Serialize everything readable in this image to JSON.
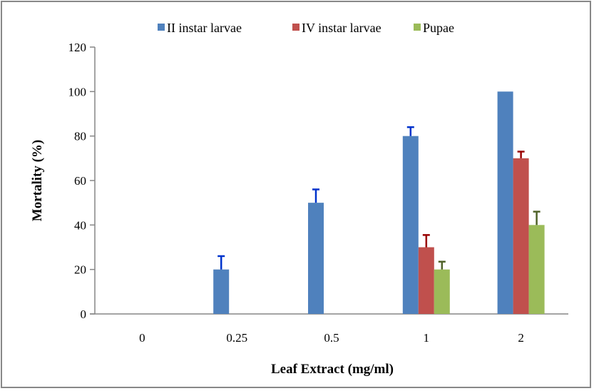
{
  "chart_data": {
    "type": "bar",
    "title": "",
    "xlabel": "Leaf Extract (mg/ml)",
    "ylabel": "Mortality (%)",
    "ylim": [
      0,
      120
    ],
    "yticks": [
      0,
      20,
      40,
      60,
      80,
      100,
      120
    ],
    "grid": false,
    "legend_position": "top",
    "categories": [
      "0",
      "0.25",
      "0.5",
      "1",
      "2"
    ],
    "series": [
      {
        "name": "II instar larvae",
        "color": "#4F81BD",
        "error_color": "#0033CC",
        "values": [
          0,
          20,
          50,
          80,
          100
        ],
        "errors": [
          0,
          6,
          6,
          4,
          0
        ]
      },
      {
        "name": "IV instar larvae",
        "color": "#C0504D",
        "error_color": "#990000",
        "values": [
          0,
          0,
          0,
          30,
          70
        ],
        "errors": [
          0,
          0,
          0,
          5.5,
          3
        ]
      },
      {
        "name": "Pupae",
        "color": "#9BBB59",
        "error_color": "#4F6228",
        "values": [
          0,
          0,
          0,
          20,
          40
        ],
        "errors": [
          0,
          0,
          0,
          3.5,
          6
        ]
      }
    ]
  }
}
